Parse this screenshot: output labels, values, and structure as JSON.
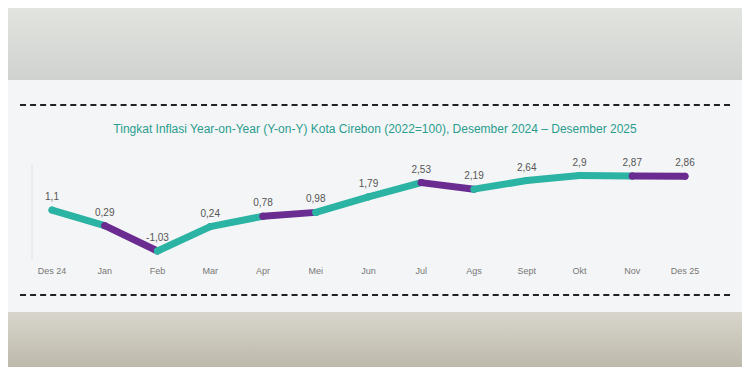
{
  "chart_data": {
    "type": "line",
    "title": "Tingkat Inflasi Year-on-Year (Y-on-Y) Kota Cirebon (2022=100), Desember 2024 – Desember 2025",
    "categories": [
      "Des 24",
      "Jan",
      "Feb",
      "Mar",
      "Apr",
      "Mei",
      "Jun",
      "Jul",
      "Ags",
      "Sept",
      "Okt",
      "Nov",
      "Des 25"
    ],
    "values": [
      1.1,
      0.29,
      -1.03,
      0.24,
      0.78,
      0.98,
      1.79,
      2.53,
      2.19,
      2.64,
      2.9,
      2.87,
      2.86
    ],
    "value_labels": [
      "1,1",
      "0,29",
      "-1,03",
      "0,24",
      "0,78",
      "0,98",
      "1,79",
      "2,53",
      "2,19",
      "2,64",
      "2,9",
      "2,87",
      "2,86"
    ],
    "colors": [
      "#2bb3a3",
      "#6a2c91",
      "#2bb3a3",
      "#2bb3a3",
      "#6a2c91",
      "#2bb3a3",
      "#2bb3a3",
      "#6a2c91",
      "#2bb3a3",
      "#2bb3a3",
      "#2bb3a3",
      "#6a2c91",
      "#6a2c91"
    ],
    "ylim": [
      -1.5,
      3.5
    ],
    "grid": false,
    "data_labels": true,
    "tick_labels": "x"
  }
}
